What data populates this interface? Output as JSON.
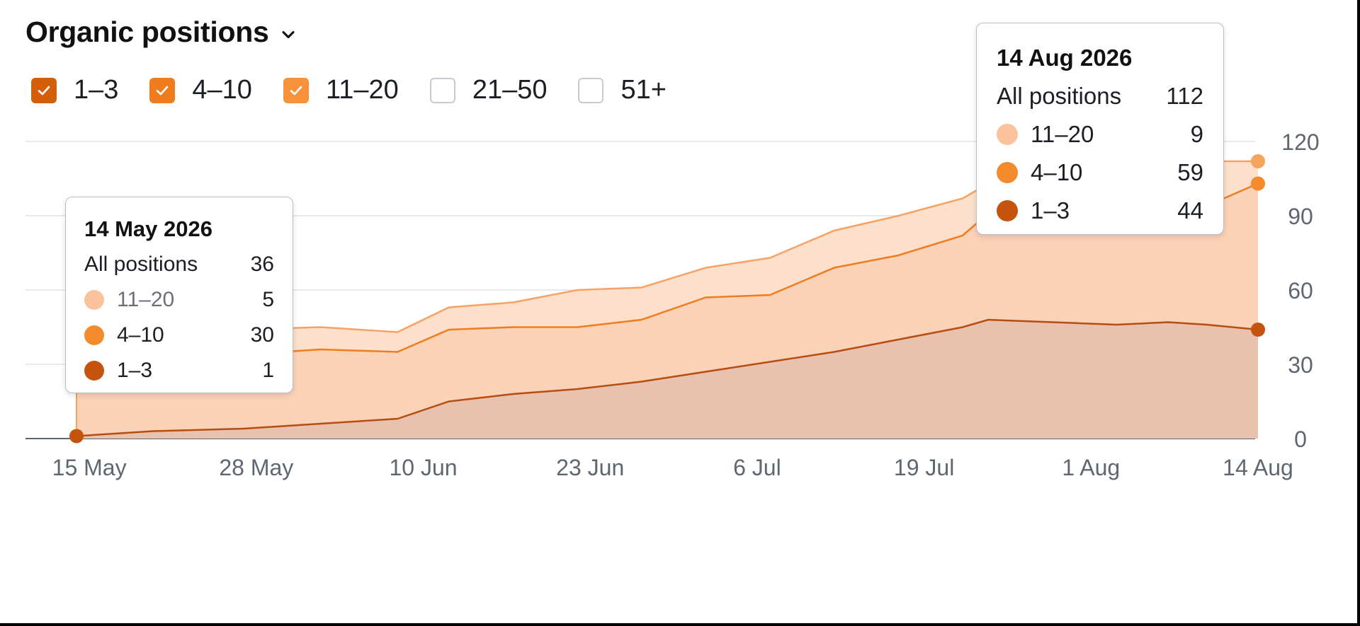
{
  "header": {
    "title": "Organic positions"
  },
  "filters": [
    {
      "label": "1–3",
      "checked": true,
      "color": "#d35f0a"
    },
    {
      "label": "4–10",
      "checked": true,
      "color": "#f07d1d"
    },
    {
      "label": "11–20",
      "checked": true,
      "color": "#f7923a"
    },
    {
      "label": "21–50",
      "checked": false,
      "color": "#ffffff"
    },
    {
      "label": "51+",
      "checked": false,
      "color": "#ffffff"
    }
  ],
  "tooltips": [
    {
      "date": "14 May 2026",
      "all_label": "All positions",
      "all_value": "36",
      "rows": [
        {
          "label": "11–20",
          "value": "5",
          "color": "#fbc39b"
        },
        {
          "label": "4–10",
          "value": "30",
          "color": "#f38a2c"
        },
        {
          "label": "1–3",
          "value": "1",
          "color": "#c4530e"
        }
      ]
    },
    {
      "date": "14 Aug 2026",
      "all_label": "All positions",
      "all_value": "112",
      "rows": [
        {
          "label": "11–20",
          "value": "9",
          "color": "#fbc39b"
        },
        {
          "label": "4–10",
          "value": "59",
          "color": "#f38a2c"
        },
        {
          "label": "1–3",
          "value": "44",
          "color": "#c4530e"
        }
      ]
    }
  ],
  "chart_data": {
    "type": "area",
    "stacked": true,
    "x_start": "14 May 2026",
    "x_end": "14 Aug 2026",
    "x_ticks": [
      "15 May",
      "28 May",
      "10 Jun",
      "23 Jun",
      "6 Jul",
      "19 Jul",
      "1 Aug",
      "14 Aug"
    ],
    "y_ticks": [
      0,
      30,
      60,
      90,
      120
    ],
    "ylim": [
      0,
      120
    ],
    "y_axis_side": "right",
    "grid": true,
    "colors": {
      "series_1_3_fill": "#e8c2ae",
      "series_4_10_fill": "#fad2b8",
      "series_11_20_fill": "#fce0cc",
      "line_1_3": "#b84d10",
      "line_4_10": "#f07d1d",
      "line_11_20": "#f7a263"
    },
    "series": [
      {
        "name": "1–3",
        "x": [
          "14 May",
          "20 May",
          "27 May",
          "2 Jun",
          "8 Jun",
          "12 Jun",
          "17 Jun",
          "22 Jun",
          "27 Jun",
          "2 Jul",
          "7 Jul",
          "12 Jul",
          "17 Jul",
          "22 Jul",
          "24 Jul",
          "29 Jul",
          "3 Aug",
          "7 Aug",
          "10 Aug",
          "14 Aug"
        ],
        "values": [
          1,
          3,
          4,
          6,
          8,
          15,
          18,
          20,
          23,
          27,
          31,
          35,
          40,
          45,
          48,
          47,
          46,
          47,
          46,
          44
        ]
      },
      {
        "name": "4–10",
        "x": [
          "14 May",
          "20 May",
          "27 May",
          "2 Jun",
          "8 Jun",
          "12 Jun",
          "17 Jun",
          "22 Jun",
          "27 Jun",
          "2 Jul",
          "7 Jul",
          "12 Jul",
          "17 Jul",
          "22 Jul",
          "24 Jul",
          "29 Jul",
          "3 Aug",
          "7 Aug",
          "10 Aug",
          "14 Aug"
        ],
        "values": [
          30,
          30,
          30,
          30,
          27,
          29,
          27,
          25,
          25,
          30,
          27,
          34,
          34,
          37,
          43,
          42,
          43,
          44,
          48,
          59
        ]
      },
      {
        "name": "11–20",
        "x": [
          "14 May",
          "20 May",
          "27 May",
          "2 Jun",
          "8 Jun",
          "12 Jun",
          "17 Jun",
          "22 Jun",
          "27 Jun",
          "2 Jul",
          "7 Jul",
          "12 Jul",
          "17 Jul",
          "22 Jul",
          "24 Jul",
          "29 Jul",
          "3 Aug",
          "7 Aug",
          "10 Aug",
          "14 Aug"
        ],
        "values": [
          5,
          8,
          10,
          9,
          8,
          9,
          10,
          15,
          13,
          12,
          15,
          15,
          16,
          15,
          12,
          18,
          20,
          20,
          18,
          9
        ]
      }
    ]
  }
}
